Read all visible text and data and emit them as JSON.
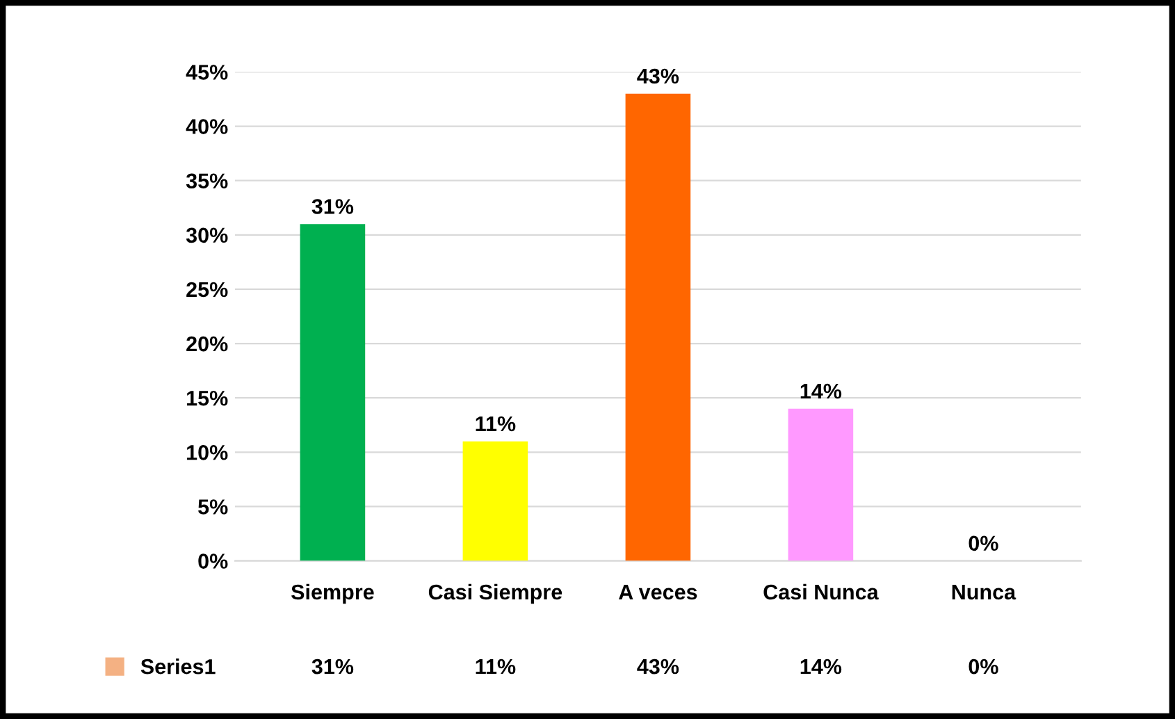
{
  "chart_data": {
    "type": "bar",
    "categories": [
      "Siempre",
      "Casi Siempre",
      "A veces",
      "Casi Nunca",
      "Nunca"
    ],
    "series": [
      {
        "name": "Series1",
        "color": "#f4b183",
        "colors": [
          "#00b050",
          "#ffff00",
          "#ff6600",
          "#ff99ff",
          "#2aa7c9"
        ],
        "values": [
          31,
          11,
          43,
          14,
          0
        ],
        "value_labels": [
          "31%",
          "11%",
          "43%",
          "14%",
          "0%"
        ]
      }
    ],
    "ylim": [
      0,
      45
    ],
    "yticks": [
      {
        "value": 0,
        "label": "0%"
      },
      {
        "value": 5,
        "label": "5%"
      },
      {
        "value": 10,
        "label": "10%"
      },
      {
        "value": 15,
        "label": "15%"
      },
      {
        "value": 20,
        "label": "20%"
      },
      {
        "value": 25,
        "label": "25%"
      },
      {
        "value": 30,
        "label": "30%"
      },
      {
        "value": 35,
        "label": "35%"
      },
      {
        "value": 40,
        "label": "40%"
      },
      {
        "value": 45,
        "label": "45%"
      }
    ],
    "grid": "y",
    "legend": "bottom left"
  }
}
